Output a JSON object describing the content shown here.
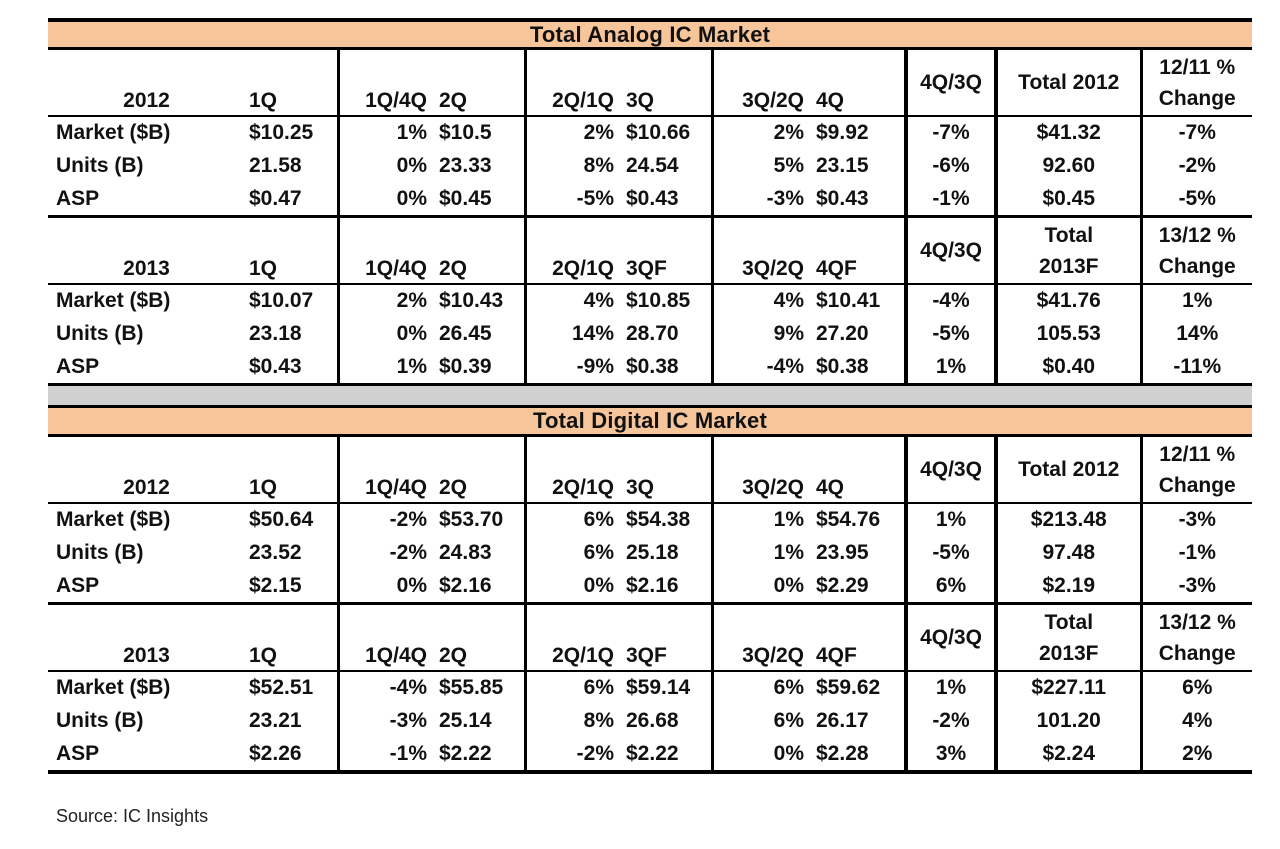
{
  "chart_data": [
    {
      "type": "table",
      "title": "Total Analog IC Market",
      "sections": [
        {
          "year": "2012",
          "columns": [
            "1Q",
            "1Q/4Q",
            "2Q",
            "2Q/1Q",
            "3Q",
            "3Q/2Q",
            "4Q",
            "4Q/3Q"
          ],
          "total_label": [
            "Total 2012"
          ],
          "change_label": [
            "12/11 %",
            "Change"
          ],
          "rows": [
            {
              "label": "Market ($B)",
              "cells": [
                "$10.25",
                "1%",
                "$10.5",
                "2%",
                "$10.66",
                "2%",
                "$9.92",
                "-7%"
              ],
              "total": "$41.32",
              "change": "-7%"
            },
            {
              "label": "Units (B)",
              "cells": [
                "21.58",
                "0%",
                "23.33",
                "8%",
                "24.54",
                "5%",
                "23.15",
                "-6%"
              ],
              "total": "92.60",
              "change": "-2%"
            },
            {
              "label": "ASP",
              "cells": [
                "$0.47",
                "0%",
                "$0.45",
                "-5%",
                "$0.43",
                "-3%",
                "$0.43",
                "-1%"
              ],
              "total": "$0.45",
              "change": "-5%"
            }
          ]
        },
        {
          "year": "2013",
          "columns": [
            "1Q",
            "1Q/4Q",
            "2Q",
            "2Q/1Q",
            "3QF",
            "3Q/2Q",
            "4QF",
            "4Q/3Q"
          ],
          "total_label": [
            "Total",
            "2013F"
          ],
          "change_label": [
            "13/12 %",
            "Change"
          ],
          "rows": [
            {
              "label": "Market ($B)",
              "cells": [
                "$10.07",
                "2%",
                "$10.43",
                "4%",
                "$10.85",
                "4%",
                "$10.41",
                "-4%"
              ],
              "total": "$41.76",
              "change": "1%"
            },
            {
              "label": "Units (B)",
              "cells": [
                "23.18",
                "0%",
                "26.45",
                "14%",
                "28.70",
                "9%",
                "27.20",
                "-5%"
              ],
              "total": "105.53",
              "change": "14%"
            },
            {
              "label": "ASP",
              "cells": [
                "$0.43",
                "1%",
                "$0.39",
                "-9%",
                "$0.38",
                "-4%",
                "$0.38",
                "1%"
              ],
              "total": "$0.40",
              "change": "-11%"
            }
          ]
        }
      ]
    },
    {
      "type": "table",
      "title": "Total Digital IC Market",
      "sections": [
        {
          "year": "2012",
          "columns": [
            "1Q",
            "1Q/4Q",
            "2Q",
            "2Q/1Q",
            "3Q",
            "3Q/2Q",
            "4Q",
            "4Q/3Q"
          ],
          "total_label": [
            "Total 2012"
          ],
          "change_label": [
            "12/11 %",
            "Change"
          ],
          "rows": [
            {
              "label": "Market ($B)",
              "cells": [
                "$50.64",
                "-2%",
                "$53.70",
                "6%",
                "$54.38",
                "1%",
                "$54.76",
                "1%"
              ],
              "total": "$213.48",
              "change": "-3%"
            },
            {
              "label": "Units (B)",
              "cells": [
                "23.52",
                "-2%",
                "24.83",
                "6%",
                "25.18",
                "1%",
                "23.95",
                "-5%"
              ],
              "total": "97.48",
              "change": "-1%"
            },
            {
              "label": "ASP",
              "cells": [
                "$2.15",
                "0%",
                "$2.16",
                "0%",
                "$2.16",
                "0%",
                "$2.29",
                "6%"
              ],
              "total": "$2.19",
              "change": "-3%"
            }
          ]
        },
        {
          "year": "2013",
          "columns": [
            "1Q",
            "1Q/4Q",
            "2Q",
            "2Q/1Q",
            "3QF",
            "3Q/2Q",
            "4QF",
            "4Q/3Q"
          ],
          "total_label": [
            "Total",
            "2013F"
          ],
          "change_label": [
            "13/12 %",
            "Change"
          ],
          "rows": [
            {
              "label": "Market ($B)",
              "cells": [
                "$52.51",
                "-4%",
                "$55.85",
                "6%",
                "$59.14",
                "6%",
                "$59.62",
                "1%"
              ],
              "total": "$227.11",
              "change": "6%"
            },
            {
              "label": "Units (B)",
              "cells": [
                "23.21",
                "-3%",
                "25.14",
                "8%",
                "26.68",
                "6%",
                "26.17",
                "-2%"
              ],
              "total": "101.20",
              "change": "4%"
            },
            {
              "label": "ASP",
              "cells": [
                "$2.26",
                "-1%",
                "$2.22",
                "-2%",
                "$2.22",
                "0%",
                "$2.28",
                "3%"
              ],
              "total": "$2.24",
              "change": "2%"
            }
          ]
        }
      ]
    }
  ],
  "source": "Source: IC Insights"
}
